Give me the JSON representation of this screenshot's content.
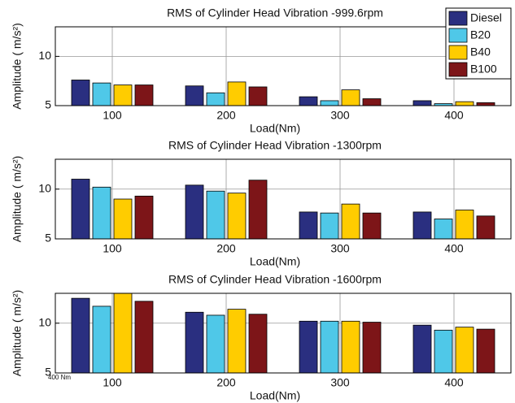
{
  "chart_data": [
    {
      "type": "bar",
      "title": "RMS of Cylinder Head Vibration -999.6rpm",
      "xlabel": "Load(Nm)",
      "ylabel": "Amplitude ( m/s²)",
      "categories": [
        "100",
        "200",
        "300",
        "400"
      ],
      "ylim": [
        5,
        13
      ],
      "yticks": [
        5,
        10
      ],
      "grid": true,
      "legend": "upper right",
      "series": [
        {
          "name": "Diesel",
          "color": "#2a2f80",
          "values": [
            7.6,
            7.0,
            5.9,
            5.5
          ]
        },
        {
          "name": "B20",
          "color": "#4fc8e8",
          "values": [
            7.3,
            6.3,
            5.5,
            5.2
          ]
        },
        {
          "name": "B40",
          "color": "#ffcc00",
          "values": [
            7.1,
            7.4,
            6.6,
            5.4
          ]
        },
        {
          "name": "B100",
          "color": "#7d1518",
          "values": [
            7.1,
            6.9,
            5.7,
            5.3
          ]
        }
      ]
    },
    {
      "type": "bar",
      "title": "RMS of Cylinder Head Vibration -1300rpm",
      "xlabel": "Load(Nm)",
      "ylabel": "Amplitude ( m/s²)",
      "categories": [
        "100",
        "200",
        "300",
        "400"
      ],
      "ylim": [
        5,
        13
      ],
      "yticks": [
        5,
        10
      ],
      "grid": true,
      "series": [
        {
          "color": "#2a2f80",
          "values": [
            11.0,
            10.4,
            7.7,
            7.7
          ]
        },
        {
          "color": "#4fc8e8",
          "values": [
            10.2,
            9.8,
            7.6,
            7.0
          ]
        },
        {
          "color": "#ffcc00",
          "values": [
            9.0,
            9.6,
            8.5,
            7.9
          ]
        },
        {
          "color": "#7d1518",
          "values": [
            9.3,
            10.9,
            7.6,
            7.3
          ]
        }
      ]
    },
    {
      "type": "bar",
      "title": "RMS of Cylinder Head Vibration -1600rpm",
      "xlabel": "Load(Nm)",
      "ylabel": "Amplitude ( m/s²)",
      "categories": [
        "100",
        "200",
        "300",
        "400"
      ],
      "ylim": [
        5,
        13
      ],
      "yticks": [
        5,
        10
      ],
      "grid": true,
      "annotation": "400 Nm",
      "series": [
        {
          "color": "#2a2f80",
          "values": [
            12.5,
            11.1,
            10.2,
            9.8
          ]
        },
        {
          "color": "#4fc8e8",
          "values": [
            11.7,
            10.8,
            10.2,
            9.3
          ]
        },
        {
          "color": "#ffcc00",
          "values": [
            13.0,
            11.4,
            10.2,
            9.6
          ]
        },
        {
          "color": "#7d1518",
          "values": [
            12.2,
            10.9,
            10.1,
            9.4
          ]
        }
      ]
    }
  ]
}
